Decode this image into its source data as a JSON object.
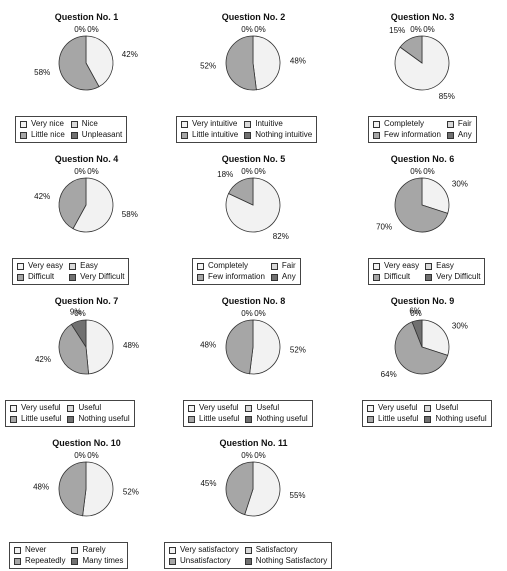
{
  "colors": {
    "c0": "#f2f2f2",
    "c1": "#d9d9d9",
    "c2": "#a6a6a6",
    "c3": "#707070",
    "stroke": "#333333"
  },
  "chart_data": [
    {
      "type": "pie",
      "title": "Question No. 1",
      "labels": [
        "Very nice",
        "Nice",
        "Little nice",
        "Unpleasant"
      ],
      "values": [
        42,
        0,
        58,
        0
      ]
    },
    {
      "type": "pie",
      "title": "Question No. 2",
      "labels": [
        "Very intuitive",
        "Intuitive",
        "Little intuitive",
        "Nothing intuitive"
      ],
      "values": [
        48,
        0,
        52,
        0
      ]
    },
    {
      "type": "pie",
      "title": "Question No. 3",
      "labels": [
        "Completely",
        "Fair",
        "Few information",
        "Any"
      ],
      "values": [
        85,
        0,
        15,
        0
      ]
    },
    {
      "type": "pie",
      "title": "Question No. 4",
      "labels": [
        "Very easy",
        "Easy",
        "Difficult",
        "Very Difficult"
      ],
      "values": [
        58,
        0,
        42,
        0
      ]
    },
    {
      "type": "pie",
      "title": "Question No. 5",
      "labels": [
        "Completely",
        "Fair",
        "Few information",
        "Any"
      ],
      "values": [
        82,
        0,
        18,
        0
      ]
    },
    {
      "type": "pie",
      "title": "Question No. 6",
      "labels": [
        "Very easy",
        "Easy",
        "Difficult",
        "Very Difficult"
      ],
      "values": [
        30,
        0,
        70,
        0
      ]
    },
    {
      "type": "pie",
      "title": "Question No. 7",
      "labels": [
        "Very useful",
        "Useful",
        "Little useful",
        "Nothing useful"
      ],
      "values": [
        48,
        0,
        42,
        9
      ]
    },
    {
      "type": "pie",
      "title": "Question No. 8",
      "labels": [
        "Very useful",
        "Useful",
        "Little useful",
        "Nothing useful"
      ],
      "values": [
        52,
        0,
        48,
        0
      ]
    },
    {
      "type": "pie",
      "title": "Question No. 9",
      "labels": [
        "Very useful",
        "Useful",
        "Little useful",
        "Nothing useful"
      ],
      "values": [
        30,
        0,
        64,
        6
      ]
    },
    {
      "type": "pie",
      "title": "Question No. 10",
      "labels": [
        "Never",
        "Rarely",
        "Repeatedly",
        "Many times"
      ],
      "values": [
        52,
        0,
        48,
        0
      ]
    },
    {
      "type": "pie",
      "title": "Question No. 11",
      "labels": [
        "Very satisfactory",
        "Satisfactory",
        "Unsatisfactory",
        "Nothing Satisfactory"
      ],
      "values": [
        55,
        0,
        45,
        0
      ]
    }
  ]
}
